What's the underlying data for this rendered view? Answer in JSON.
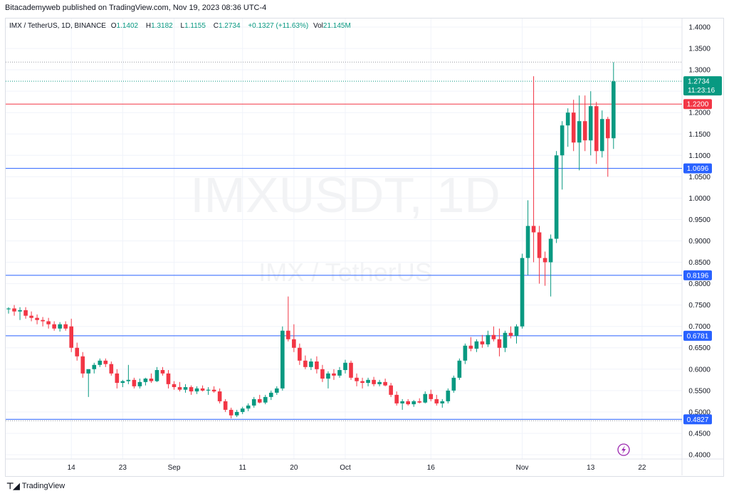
{
  "header": {
    "published": "Bitacademyweb published on TradingView.com, Nov 19, 2023 08:36 UTC-4"
  },
  "legend": {
    "symbol": "IMX / TetherUS, 1D, BINANCE",
    "open_label": "O",
    "open": "1.1402",
    "high_label": "H",
    "high": "1.3182",
    "low_label": "L",
    "low": "1.1155",
    "close_label": "C",
    "close": "1.2734",
    "change": "+0.1327 (+11.63%)",
    "vol_label": "Vol",
    "vol": "21.145M"
  },
  "watermark": {
    "title": "IMXUSDT, 1D",
    "subtitle": "IMX / TetherUS"
  },
  "footer": {
    "brand": "TradingView"
  },
  "colors": {
    "up": "#089981",
    "down": "#f23645",
    "support": "#2962ff",
    "resistance": "#f23645",
    "grid": "#f0f3fa"
  },
  "chart_data": {
    "type": "candlestick",
    "ylim": [
      0.39,
      1.42
    ],
    "y_ticks": [
      "1.4000",
      "1.3500",
      "1.3000",
      "1.2500",
      "1.2000",
      "1.1500",
      "1.1000",
      "1.0500",
      "1.0000",
      "0.9500",
      "0.9000",
      "0.8500",
      "0.8000",
      "0.7500",
      "0.7000",
      "0.6500",
      "0.6000",
      "0.5500",
      "0.5000",
      "0.4500",
      "0.4000"
    ],
    "x_ticks": [
      {
        "label": "14",
        "day": 11
      },
      {
        "label": "23",
        "day": 20
      },
      {
        "label": "Sep",
        "day": 29
      },
      {
        "label": "11",
        "day": 41
      },
      {
        "label": "20",
        "day": 50
      },
      {
        "label": "Oct",
        "day": 59
      },
      {
        "label": "16",
        "day": 74
      },
      {
        "label": "Nov",
        "day": 90
      },
      {
        "label": "13",
        "day": 102
      },
      {
        "label": "22",
        "day": 111
      }
    ],
    "x_range_days": [
      -0.5,
      118
    ],
    "levels": [
      {
        "value": 1.22,
        "label": "1.2200",
        "kind": "resistance"
      },
      {
        "value": 1.0696,
        "label": "1.0696",
        "kind": "support"
      },
      {
        "value": 0.8196,
        "label": "0.8196",
        "kind": "support"
      },
      {
        "value": 0.6781,
        "label": "0.6781",
        "kind": "support"
      },
      {
        "value": 0.4827,
        "label": "0.4827",
        "kind": "support"
      }
    ],
    "last_price": {
      "value": 1.2734,
      "label": "1.2734",
      "countdown": "11:23:16"
    },
    "candles": [
      [
        0.74,
        0.745,
        0.73,
        0.742
      ],
      [
        0.742,
        0.75,
        0.725,
        0.735
      ],
      [
        0.735,
        0.745,
        0.715,
        0.738
      ],
      [
        0.738,
        0.745,
        0.718,
        0.725
      ],
      [
        0.725,
        0.735,
        0.712,
        0.72
      ],
      [
        0.72,
        0.728,
        0.705,
        0.715
      ],
      [
        0.715,
        0.722,
        0.7,
        0.712
      ],
      [
        0.712,
        0.72,
        0.695,
        0.705
      ],
      [
        0.705,
        0.712,
        0.69,
        0.695
      ],
      [
        0.695,
        0.71,
        0.688,
        0.705
      ],
      [
        0.705,
        0.712,
        0.69,
        0.695
      ],
      [
        0.7,
        0.718,
        0.64,
        0.65
      ],
      [
        0.65,
        0.662,
        0.62,
        0.63
      ],
      [
        0.63,
        0.64,
        0.58,
        0.59
      ],
      [
        0.59,
        0.6,
        0.535,
        0.6
      ],
      [
        0.6,
        0.615,
        0.59,
        0.61
      ],
      [
        0.61,
        0.625,
        0.605,
        0.62
      ],
      [
        0.62,
        0.625,
        0.605,
        0.612
      ],
      [
        0.612,
        0.618,
        0.585,
        0.59
      ],
      [
        0.59,
        0.6,
        0.555,
        0.568
      ],
      [
        0.568,
        0.575,
        0.558,
        0.572
      ],
      [
        0.572,
        0.61,
        0.565,
        0.575
      ],
      [
        0.575,
        0.58,
        0.555,
        0.56
      ],
      [
        0.56,
        0.578,
        0.555,
        0.57
      ],
      [
        0.57,
        0.58,
        0.562,
        0.578
      ],
      [
        0.578,
        0.59,
        0.568,
        0.572
      ],
      [
        0.572,
        0.605,
        0.57,
        0.598
      ],
      [
        0.598,
        0.605,
        0.585,
        0.59
      ],
      [
        0.59,
        0.598,
        0.555,
        0.565
      ],
      [
        0.565,
        0.572,
        0.552,
        0.558
      ],
      [
        0.558,
        0.57,
        0.548,
        0.552
      ],
      [
        0.552,
        0.565,
        0.545,
        0.558
      ],
      [
        0.558,
        0.562,
        0.54,
        0.548
      ],
      [
        0.548,
        0.56,
        0.542,
        0.555
      ],
      [
        0.555,
        0.562,
        0.548,
        0.55
      ],
      [
        0.55,
        0.558,
        0.54,
        0.552
      ],
      [
        0.552,
        0.56,
        0.545,
        0.548
      ],
      [
        0.548,
        0.555,
        0.52,
        0.525
      ],
      [
        0.525,
        0.53,
        0.5,
        0.505
      ],
      [
        0.505,
        0.51,
        0.485,
        0.492
      ],
      [
        0.492,
        0.505,
        0.488,
        0.5
      ],
      [
        0.5,
        0.512,
        0.495,
        0.508
      ],
      [
        0.508,
        0.52,
        0.502,
        0.515
      ],
      [
        0.515,
        0.535,
        0.51,
        0.53
      ],
      [
        0.53,
        0.54,
        0.52,
        0.522
      ],
      [
        0.522,
        0.54,
        0.518,
        0.535
      ],
      [
        0.535,
        0.55,
        0.528,
        0.545
      ],
      [
        0.545,
        0.56,
        0.54,
        0.555
      ],
      [
        0.555,
        0.7,
        0.55,
        0.69
      ],
      [
        0.69,
        0.77,
        0.665,
        0.67
      ],
      [
        0.67,
        0.705,
        0.64,
        0.65
      ],
      [
        0.65,
        0.66,
        0.61,
        0.62
      ],
      [
        0.62,
        0.632,
        0.6,
        0.605
      ],
      [
        0.605,
        0.625,
        0.598,
        0.618
      ],
      [
        0.618,
        0.63,
        0.59,
        0.6
      ],
      [
        0.6,
        0.61,
        0.57,
        0.578
      ],
      [
        0.578,
        0.595,
        0.555,
        0.59
      ],
      [
        0.59,
        0.6,
        0.575,
        0.585
      ],
      [
        0.585,
        0.605,
        0.58,
        0.598
      ],
      [
        0.598,
        0.622,
        0.59,
        0.615
      ],
      [
        0.615,
        0.62,
        0.575,
        0.58
      ],
      [
        0.58,
        0.59,
        0.56,
        0.572
      ],
      [
        0.572,
        0.58,
        0.555,
        0.568
      ],
      [
        0.568,
        0.58,
        0.56,
        0.575
      ],
      [
        0.575,
        0.582,
        0.56,
        0.565
      ],
      [
        0.565,
        0.575,
        0.56,
        0.57
      ],
      [
        0.57,
        0.578,
        0.56,
        0.562
      ],
      [
        0.562,
        0.568,
        0.535,
        0.54
      ],
      [
        0.54,
        0.548,
        0.515,
        0.52
      ],
      [
        0.52,
        0.53,
        0.505,
        0.525
      ],
      [
        0.525,
        0.53,
        0.515,
        0.518
      ],
      [
        0.518,
        0.528,
        0.512,
        0.525
      ],
      [
        0.525,
        0.532,
        0.52,
        0.522
      ],
      [
        0.522,
        0.548,
        0.52,
        0.542
      ],
      [
        0.542,
        0.552,
        0.525,
        0.53
      ],
      [
        0.53,
        0.54,
        0.515,
        0.52
      ],
      [
        0.52,
        0.53,
        0.51,
        0.525
      ],
      [
        0.525,
        0.555,
        0.52,
        0.55
      ],
      [
        0.55,
        0.585,
        0.545,
        0.58
      ],
      [
        0.58,
        0.625,
        0.575,
        0.62
      ],
      [
        0.62,
        0.66,
        0.612,
        0.655
      ],
      [
        0.655,
        0.675,
        0.642,
        0.648
      ],
      [
        0.648,
        0.67,
        0.64,
        0.665
      ],
      [
        0.665,
        0.68,
        0.65,
        0.658
      ],
      [
        0.658,
        0.69,
        0.652,
        0.68
      ],
      [
        0.68,
        0.7,
        0.665,
        0.67
      ],
      [
        0.67,
        0.695,
        0.63,
        0.65
      ],
      [
        0.65,
        0.69,
        0.64,
        0.685
      ],
      [
        0.685,
        0.7,
        0.672,
        0.678
      ],
      [
        0.678,
        0.705,
        0.66,
        0.7
      ],
      [
        0.7,
        0.87,
        0.695,
        0.86
      ],
      [
        0.86,
        0.995,
        0.82,
        0.935
      ],
      [
        0.935,
        1.285,
        0.85,
        0.92
      ],
      [
        0.92,
        0.935,
        0.8,
        0.86
      ],
      [
        0.86,
        0.875,
        0.795,
        0.85
      ],
      [
        0.85,
        0.915,
        0.77,
        0.905
      ],
      [
        0.905,
        1.11,
        0.895,
        1.1
      ],
      [
        1.1,
        1.18,
        1.02,
        1.17
      ],
      [
        1.17,
        1.21,
        1.12,
        1.2
      ],
      [
        1.2,
        1.23,
        1.11,
        1.13
      ],
      [
        1.13,
        1.24,
        1.065,
        1.18
      ],
      [
        1.18,
        1.24,
        1.11,
        1.135
      ],
      [
        1.135,
        1.25,
        1.1,
        1.215
      ],
      [
        1.215,
        1.225,
        1.08,
        1.11
      ],
      [
        1.11,
        1.205,
        1.095,
        1.185
      ],
      [
        1.185,
        1.19,
        1.05,
        1.14
      ],
      [
        1.14,
        1.318,
        1.115,
        1.273
      ]
    ]
  }
}
